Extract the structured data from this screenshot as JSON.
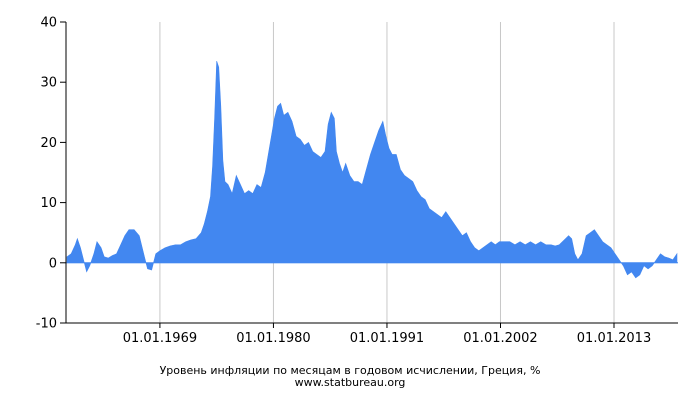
{
  "chart_data": {
    "type": "area",
    "title": "Уровень инфляции по месяцам в годовом исчислении, Греция, %",
    "subtitle": "www.statbureau.org",
    "xlabel": "",
    "ylabel": "",
    "x_tick_labels": [
      "01.01.1969",
      "01.01.1980",
      "01.01.1991",
      "01.01.2002",
      "01.01.2013"
    ],
    "x_ticks": [
      1969,
      1980,
      1991,
      2002,
      2013
    ],
    "y_tick_labels": [
      "-10",
      "0",
      "10",
      "20",
      "30",
      "40"
    ],
    "y_ticks": [
      -10,
      0,
      10,
      20,
      30,
      40
    ],
    "xlim": [
      1959.9,
      2019.2
    ],
    "ylim": [
      -10,
      40
    ],
    "grid": "vertical",
    "legend": "none",
    "series": [
      {
        "color": "#4287f0",
        "x": [
          1960.0,
          1960.4,
          1960.8,
          1961.0,
          1961.3,
          1961.6,
          1961.9,
          1962.2,
          1962.6,
          1962.9,
          1963.3,
          1963.6,
          1964.0,
          1964.4,
          1964.8,
          1965.2,
          1965.6,
          1966.0,
          1966.5,
          1967.0,
          1967.5,
          1967.8,
          1968.2,
          1968.6,
          1969.0,
          1969.5,
          1970.0,
          1970.5,
          1971.0,
          1971.5,
          1972.0,
          1972.5,
          1973.0,
          1973.3,
          1973.6,
          1973.9,
          1974.1,
          1974.3,
          1974.5,
          1974.7,
          1974.9,
          1975.1,
          1975.3,
          1975.6,
          1976.0,
          1976.4,
          1976.8,
          1977.2,
          1977.6,
          1978.0,
          1978.4,
          1978.8,
          1979.2,
          1979.5,
          1979.8,
          1980.1,
          1980.4,
          1980.7,
          1981.0,
          1981.4,
          1981.8,
          1982.2,
          1982.6,
          1983.0,
          1983.4,
          1983.8,
          1984.2,
          1984.6,
          1985.0,
          1985.3,
          1985.6,
          1985.9,
          1986.1,
          1986.4,
          1986.7,
          1987.0,
          1987.4,
          1987.8,
          1988.2,
          1988.6,
          1989.0,
          1989.4,
          1989.8,
          1990.2,
          1990.6,
          1990.9,
          1991.2,
          1991.5,
          1991.9,
          1992.3,
          1992.7,
          1993.1,
          1993.5,
          1993.9,
          1994.3,
          1994.7,
          1995.1,
          1995.5,
          1995.9,
          1996.3,
          1996.7,
          1997.1,
          1997.5,
          1997.9,
          1998.3,
          1998.7,
          1999.1,
          1999.5,
          1999.9,
          2000.3,
          2000.7,
          2001.1,
          2001.5,
          2001.9,
          2002.4,
          2002.9,
          2003.4,
          2003.9,
          2004.4,
          2004.9,
          2005.4,
          2005.9,
          2006.4,
          2006.9,
          2007.3,
          2007.7,
          2008.0,
          2008.3,
          2008.6,
          2008.9,
          2009.2,
          2009.5,
          2009.9,
          2010.3,
          2010.7,
          2011.1,
          2011.5,
          2011.9,
          2012.3,
          2012.7,
          2013.1,
          2013.5,
          2013.9,
          2014.3,
          2014.7,
          2015.1,
          2015.5,
          2015.9,
          2016.3,
          2016.7,
          2017.1,
          2017.5,
          2017.9,
          2018.3,
          2018.7,
          2019.1
        ],
        "values": [
          1.0,
          1.5,
          3.0,
          4.0,
          2.5,
          0.5,
          -1.5,
          -0.5,
          1.5,
          3.5,
          2.5,
          1.0,
          0.8,
          1.2,
          1.5,
          3.0,
          4.5,
          5.5,
          5.5,
          4.5,
          1.0,
          -1.0,
          -1.2,
          1.5,
          2.0,
          2.5,
          2.8,
          3.0,
          3.0,
          3.5,
          3.8,
          4.0,
          5.0,
          6.5,
          8.5,
          11.0,
          16.0,
          24.0,
          33.5,
          32.5,
          26.0,
          17.0,
          13.5,
          13.0,
          11.5,
          14.5,
          13.0,
          11.5,
          12.0,
          11.5,
          13.0,
          12.5,
          15.0,
          18.0,
          21.0,
          24.0,
          26.0,
          26.5,
          24.5,
          25.0,
          23.5,
          21.0,
          20.5,
          19.5,
          20.0,
          18.5,
          18.0,
          17.5,
          18.5,
          23.0,
          25.0,
          24.0,
          18.5,
          16.5,
          15.0,
          16.5,
          14.5,
          13.5,
          13.5,
          13.0,
          15.5,
          18.0,
          20.0,
          22.0,
          23.5,
          21.0,
          19.0,
          18.0,
          18.0,
          15.5,
          14.5,
          14.0,
          13.5,
          12.0,
          11.0,
          10.5,
          9.0,
          8.5,
          8.0,
          7.5,
          8.5,
          7.5,
          6.5,
          5.5,
          4.5,
          5.0,
          3.5,
          2.5,
          2.0,
          2.5,
          3.0,
          3.5,
          3.0,
          3.5,
          3.5,
          3.5,
          3.0,
          3.5,
          3.0,
          3.5,
          3.0,
          3.5,
          3.0,
          3.0,
          2.8,
          3.0,
          3.5,
          4.0,
          4.5,
          4.0,
          1.5,
          0.5,
          1.5,
          4.5,
          5.0,
          5.5,
          4.5,
          3.5,
          3.0,
          2.5,
          1.5,
          0.5,
          -0.5,
          -2.0,
          -1.5,
          -2.5,
          -2.0,
          -0.5,
          -1.0,
          -0.5,
          0.5,
          1.5,
          1.0,
          0.8,
          0.5,
          1.5
        ]
      }
    ]
  }
}
